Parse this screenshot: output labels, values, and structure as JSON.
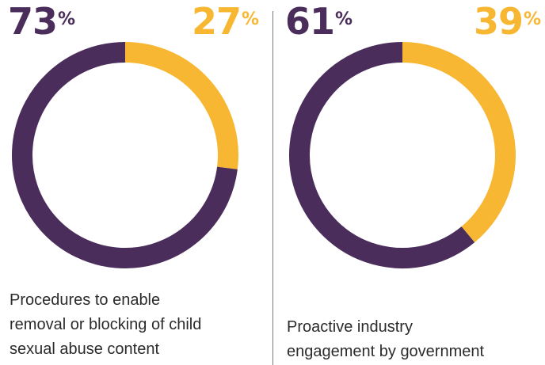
{
  "chart_data": [
    {
      "type": "pie",
      "slices": [
        {
          "label": "",
          "value": 73,
          "display": "73",
          "color": "#4b2d5c"
        },
        {
          "label": "",
          "value": 27,
          "display": "27",
          "color": "#f7b733"
        }
      ],
      "unit": "%",
      "caption_lines": [
        "Procedures to enable",
        "removal or blocking of child",
        "sexual abuse content"
      ]
    },
    {
      "type": "pie",
      "slices": [
        {
          "label": "",
          "value": 61,
          "display": "61",
          "color": "#4b2d5c"
        },
        {
          "label": "",
          "value": 39,
          "display": "39",
          "color": "#f7b733"
        }
      ],
      "unit": "%",
      "caption_lines": [
        "Proactive industry",
        "engagement by government"
      ]
    }
  ]
}
